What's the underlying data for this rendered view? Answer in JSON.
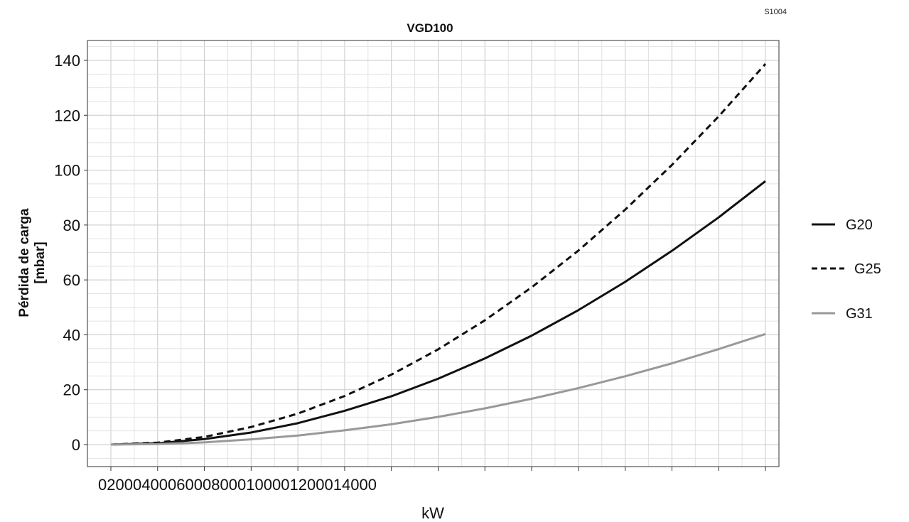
{
  "chart_data": {
    "type": "line",
    "code": "S1004",
    "title": "VGD100",
    "xlabel": "kW",
    "ylabel_line1": "Pérdida de carga",
    "ylabel_line2": "[mbar]",
    "xlim": [
      0,
      28000
    ],
    "ylim": [
      -8,
      147
    ],
    "x_ticks": [
      0,
      2000,
      4000,
      6000,
      8000,
      10000,
      12000,
      14000
    ],
    "x_tick_labels": [
      "0",
      "2000",
      "4000",
      "6000",
      "8000",
      "10000",
      "12000",
      "14000"
    ],
    "y_ticks": [
      0,
      20,
      40,
      60,
      80,
      100,
      120,
      140
    ],
    "y_tick_labels": [
      "0",
      "20",
      "40",
      "60",
      "80",
      "100",
      "120",
      "140"
    ],
    "grid": true,
    "legend_position": "right",
    "x": [
      0,
      2000,
      4000,
      6000,
      8000,
      10000,
      12000,
      14000,
      16000,
      18000,
      20000,
      22000,
      24000,
      26000,
      28000
    ],
    "series": [
      {
        "name": "G20",
        "style": "solid",
        "color": "#111111",
        "values": [
          0,
          0.5,
          2,
          4.4,
          7.8,
          12.3,
          17.6,
          24.0,
          31.4,
          39.7,
          49.0,
          59.3,
          70.6,
          82.8,
          96.0
        ]
      },
      {
        "name": "G25",
        "style": "dashed",
        "color": "#111111",
        "values": [
          0,
          0.7,
          2.8,
          6.4,
          11.3,
          17.7,
          25.5,
          34.7,
          45.3,
          57.3,
          70.7,
          85.6,
          101.9,
          119.6,
          138.7
        ]
      },
      {
        "name": "G31",
        "style": "solid",
        "color": "#999999",
        "values": [
          0,
          0.2,
          0.8,
          1.9,
          3.3,
          5.2,
          7.4,
          10.1,
          13.2,
          16.7,
          20.6,
          24.9,
          29.6,
          34.8,
          40.3
        ]
      }
    ]
  }
}
